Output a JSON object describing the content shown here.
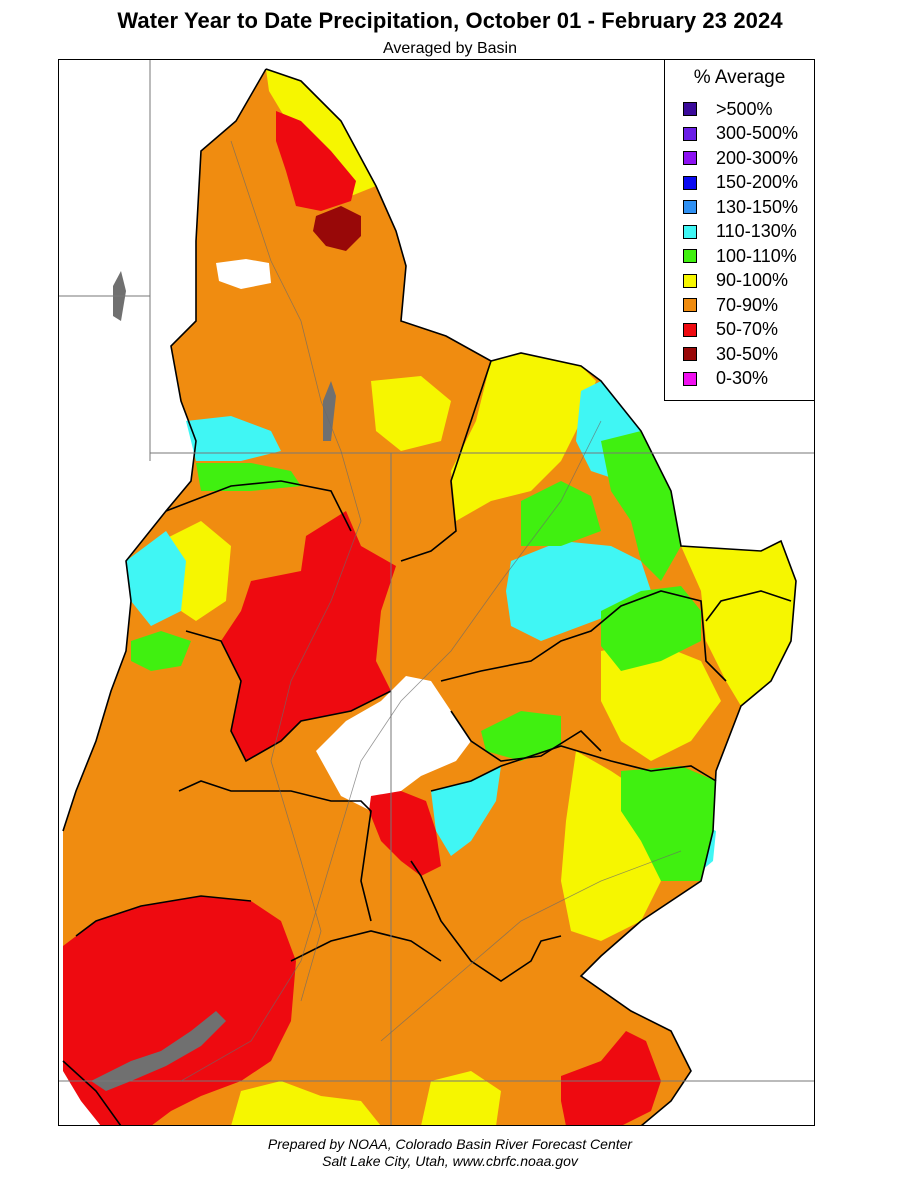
{
  "title": "Water Year to Date Precipitation, October 01  - February 23 2024",
  "subtitle": "Averaged by Basin",
  "legend": {
    "title": "% Average",
    "items": [
      {
        "label": ">500%",
        "color": "#3a0a9a"
      },
      {
        "label": "300-500%",
        "color": "#6a1ee6"
      },
      {
        "label": "200-300%",
        "color": "#8c12f2"
      },
      {
        "label": "150-200%",
        "color": "#0a0af0"
      },
      {
        "label": "130-150%",
        "color": "#2f90f2"
      },
      {
        "label": "110-130%",
        "color": "#40f6f4"
      },
      {
        "label": "100-110%",
        "color": "#40f010"
      },
      {
        "label": "90-100%",
        "color": "#f6f600"
      },
      {
        "label": "70-90%",
        "color": "#f08c10"
      },
      {
        "label": "50-70%",
        "color": "#ee0a10"
      },
      {
        "label": "30-50%",
        "color": "#980808"
      },
      {
        "label": "0-30%",
        "color": "#f010f0"
      }
    ]
  },
  "footer": {
    "line1": "Prepared by NOAA, Colorado Basin River Forecast Center",
    "line2": "Salt Lake City, Utah, www.cbrfc.noaa.gov"
  }
}
